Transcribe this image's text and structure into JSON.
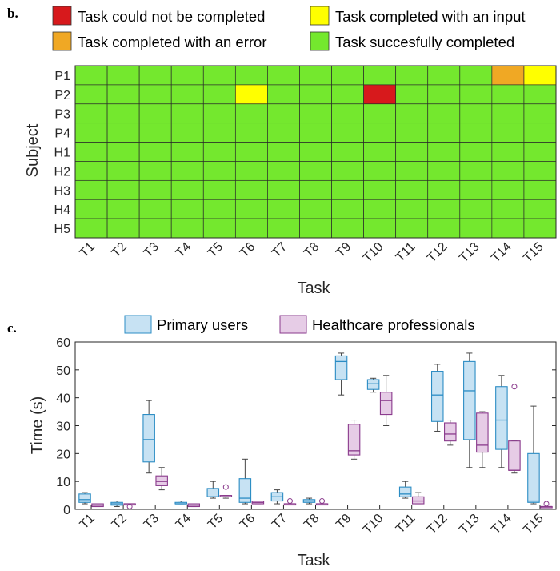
{
  "colors": {
    "fail": "#d7191c",
    "input": "#ffff00",
    "error": "#f0a824",
    "success": "#74e82e",
    "primary_fill": "#c7e2f3",
    "primary_stroke": "#2b8cc4",
    "hc_fill": "#e6cce6",
    "hc_stroke": "#8a3a8c",
    "whisker": "#444444"
  },
  "panel_b": {
    "label": "b.",
    "legend": [
      {
        "key": "fail",
        "label": "Task could not be completed"
      },
      {
        "key": "input",
        "label": "Task completed with an input"
      },
      {
        "key": "error",
        "label": "Task completed with an error"
      },
      {
        "key": "success",
        "label": "Task succesfully completed"
      }
    ],
    "ylabel": "Subject",
    "xlabel": "Task"
  },
  "panel_c": {
    "label": "c.",
    "legend": [
      {
        "key": "primary",
        "label": "Primary users"
      },
      {
        "key": "hc",
        "label": "Healthcare professionals"
      }
    ],
    "ylabel": "Time (s)",
    "xlabel": "Task"
  },
  "chart_data": [
    {
      "type": "heatmap",
      "xlabel": "Task",
      "ylabel": "Subject",
      "x": [
        "T1",
        "T2",
        "T3",
        "T4",
        "T5",
        "T6",
        "T7",
        "T8",
        "T9",
        "T10",
        "T11",
        "T12",
        "T13",
        "T14",
        "T15"
      ],
      "y": [
        "P1",
        "P2",
        "P3",
        "P4",
        "H1",
        "H2",
        "H3",
        "H4",
        "H5"
      ],
      "categories_legend": [
        "Task could not be completed",
        "Task completed with an input",
        "Task completed with an error",
        "Task succesfully completed"
      ],
      "values": [
        [
          "S",
          "S",
          "S",
          "S",
          "S",
          "S",
          "S",
          "S",
          "S",
          "S",
          "S",
          "S",
          "S",
          "E",
          "I"
        ],
        [
          "S",
          "S",
          "S",
          "S",
          "S",
          "I",
          "S",
          "S",
          "S",
          "F",
          "S",
          "S",
          "S",
          "S",
          "S"
        ],
        [
          "S",
          "S",
          "S",
          "S",
          "S",
          "S",
          "S",
          "S",
          "S",
          "S",
          "S",
          "S",
          "S",
          "S",
          "S"
        ],
        [
          "S",
          "S",
          "S",
          "S",
          "S",
          "S",
          "S",
          "S",
          "S",
          "S",
          "S",
          "S",
          "S",
          "S",
          "S"
        ],
        [
          "S",
          "S",
          "S",
          "S",
          "S",
          "S",
          "S",
          "S",
          "S",
          "S",
          "S",
          "S",
          "S",
          "S",
          "S"
        ],
        [
          "S",
          "S",
          "S",
          "S",
          "S",
          "S",
          "S",
          "S",
          "S",
          "S",
          "S",
          "S",
          "S",
          "S",
          "S"
        ],
        [
          "S",
          "S",
          "S",
          "S",
          "S",
          "S",
          "S",
          "S",
          "S",
          "S",
          "S",
          "S",
          "S",
          "S",
          "S"
        ],
        [
          "S",
          "S",
          "S",
          "S",
          "S",
          "S",
          "S",
          "S",
          "S",
          "S",
          "S",
          "S",
          "S",
          "S",
          "S"
        ],
        [
          "S",
          "S",
          "S",
          "S",
          "S",
          "S",
          "S",
          "S",
          "S",
          "S",
          "S",
          "S",
          "S",
          "S",
          "S"
        ]
      ],
      "value_codes": {
        "F": "Task could not be completed",
        "I": "Task completed with an input",
        "E": "Task completed with an error",
        "S": "Task succesfully completed"
      }
    },
    {
      "type": "box",
      "xlabel": "Task",
      "ylabel": "Time (s)",
      "ylim": [
        0,
        60
      ],
      "yticks": [
        0,
        10,
        20,
        30,
        40,
        50,
        60
      ],
      "categories": [
        "T1",
        "T2",
        "T3",
        "T4",
        "T5",
        "T6",
        "T7",
        "T8",
        "T9",
        "T10",
        "T11",
        "T12",
        "T13",
        "T14",
        "T15"
      ],
      "series": [
        {
          "name": "Primary users",
          "boxes": [
            {
              "cat": "T1",
              "min": 2,
              "q1": 2.5,
              "median": 3.5,
              "q3": 5.5,
              "max": 6,
              "outliers": []
            },
            {
              "cat": "T2",
              "min": 1,
              "q1": 1.5,
              "median": 2,
              "q3": 2.5,
              "max": 3,
              "outliers": []
            },
            {
              "cat": "T3",
              "min": 13,
              "q1": 17,
              "median": 25,
              "q3": 34,
              "max": 39,
              "outliers": []
            },
            {
              "cat": "T4",
              "min": 2,
              "q1": 2,
              "median": 2,
              "q3": 2.5,
              "max": 3,
              "outliers": []
            },
            {
              "cat": "T5",
              "min": 4,
              "q1": 4.5,
              "median": 4.5,
              "q3": 7.5,
              "max": 10,
              "outliers": []
            },
            {
              "cat": "T6",
              "min": 2,
              "q1": 2.5,
              "median": 4,
              "q3": 11,
              "max": 18,
              "outliers": []
            },
            {
              "cat": "T7",
              "min": 2,
              "q1": 3,
              "median": 4.5,
              "q3": 6,
              "max": 7,
              "outliers": []
            },
            {
              "cat": "T8",
              "min": 2,
              "q1": 2.5,
              "median": 3,
              "q3": 3.5,
              "max": 4,
              "outliers": []
            },
            {
              "cat": "T9",
              "min": 41,
              "q1": 46.5,
              "median": 53,
              "q3": 55,
              "max": 56,
              "outliers": []
            },
            {
              "cat": "T10",
              "min": 42,
              "q1": 43,
              "median": 45,
              "q3": 46.5,
              "max": 47,
              "outliers": []
            },
            {
              "cat": "T11",
              "min": 4,
              "q1": 4.5,
              "median": 5.5,
              "q3": 8,
              "max": 10,
              "outliers": []
            },
            {
              "cat": "T12",
              "min": 28,
              "q1": 31.5,
              "median": 41,
              "q3": 49.5,
              "max": 52,
              "outliers": []
            },
            {
              "cat": "T13",
              "min": 15,
              "q1": 25,
              "median": 42.5,
              "q3": 53,
              "max": 56,
              "outliers": []
            },
            {
              "cat": "T14",
              "min": 15,
              "q1": 21.5,
              "median": 32,
              "q3": 44,
              "max": 48,
              "outliers": []
            },
            {
              "cat": "T15",
              "min": 2,
              "q1": 2.5,
              "median": 3,
              "q3": 20,
              "max": 37,
              "outliers": []
            }
          ]
        },
        {
          "name": "Healthcare professionals",
          "boxes": [
            {
              "cat": "T1",
              "min": 1,
              "q1": 1,
              "median": 1.5,
              "q3": 2,
              "max": 2,
              "outliers": []
            },
            {
              "cat": "T2",
              "min": 2,
              "q1": 2,
              "median": 2,
              "q3": 2,
              "max": 2,
              "outliers": [
                1
              ]
            },
            {
              "cat": "T3",
              "min": 7,
              "q1": 8.5,
              "median": 10,
              "q3": 12,
              "max": 15,
              "outliers": []
            },
            {
              "cat": "T4",
              "min": 1,
              "q1": 1,
              "median": 1.5,
              "q3": 2,
              "max": 2,
              "outliers": []
            },
            {
              "cat": "T5",
              "min": 4,
              "q1": 4.5,
              "median": 4.5,
              "q3": 5,
              "max": 5,
              "outliers": [
                8
              ]
            },
            {
              "cat": "T6",
              "min": 2,
              "q1": 2,
              "median": 2.5,
              "q3": 3,
              "max": 3,
              "outliers": []
            },
            {
              "cat": "T7",
              "min": 2,
              "q1": 2,
              "median": 2,
              "q3": 2,
              "max": 2,
              "outliers": [
                3
              ]
            },
            {
              "cat": "T8",
              "min": 2,
              "q1": 2,
              "median": 2,
              "q3": 2,
              "max": 2,
              "outliers": [
                3
              ]
            },
            {
              "cat": "T9",
              "min": 18,
              "q1": 19.5,
              "median": 21,
              "q3": 30.5,
              "max": 32,
              "outliers": []
            },
            {
              "cat": "T10",
              "min": 30,
              "q1": 34,
              "median": 39,
              "q3": 42,
              "max": 48,
              "outliers": []
            },
            {
              "cat": "T11",
              "min": 2,
              "q1": 2,
              "median": 3,
              "q3": 4.5,
              "max": 6,
              "outliers": []
            },
            {
              "cat": "T12",
              "min": 23,
              "q1": 24.5,
              "median": 27,
              "q3": 31,
              "max": 32,
              "outliers": []
            },
            {
              "cat": "T13",
              "min": 15,
              "q1": 20.5,
              "median": 23,
              "q3": 34.5,
              "max": 35,
              "outliers": []
            },
            {
              "cat": "T14",
              "min": 13,
              "q1": 14,
              "median": 14,
              "q3": 24.5,
              "max": 24.5,
              "outliers": [
                44
              ]
            },
            {
              "cat": "T15",
              "min": 1,
              "q1": 1,
              "median": 1,
              "q3": 1,
              "max": 1,
              "outliers": [
                2
              ]
            }
          ]
        }
      ]
    }
  ]
}
